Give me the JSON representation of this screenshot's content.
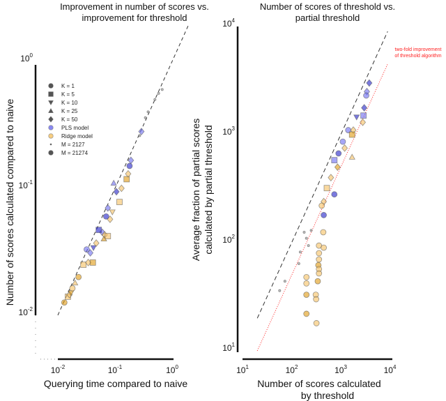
{
  "chart_data": [
    {
      "type": "scatter",
      "title_lines": [
        "Improvement in number of scores vs.",
        "improvement for threshold"
      ],
      "xlabel_lines": [
        "Querying time compared to naive"
      ],
      "ylabel_lines": [
        "Number of scores calculated compared to naive"
      ],
      "xscale": "log",
      "yscale": "log",
      "xlim": [
        0.01,
        1
      ],
      "ylim": [
        0.01,
        1
      ],
      "grid": false,
      "xticks": [
        {
          "base": "10",
          "exp": "-2",
          "value": 0.01
        },
        {
          "base": "10",
          "exp": "-1",
          "value": 0.1
        },
        {
          "base": "10",
          "exp": "0",
          "value": 1
        }
      ],
      "yticks": [
        {
          "base": "10",
          "exp": "-2",
          "value": 0.01
        },
        {
          "base": "10",
          "exp": "-1",
          "value": 0.1
        },
        {
          "base": "10",
          "exp": "0",
          "value": 1
        }
      ],
      "reference_lines": [
        {
          "style": "dashed",
          "color": "#333333",
          "equation": "y = x"
        }
      ],
      "legend": {
        "placement": "upper-left",
        "entries": [
          {
            "label": "K = 1",
            "marker": "circle",
            "color": "#555555"
          },
          {
            "label": "K = 5",
            "marker": "square",
            "color": "#555555"
          },
          {
            "label": "K = 10",
            "marker": "triangle-down",
            "color": "#555555"
          },
          {
            "label": "K = 25",
            "marker": "triangle-up",
            "color": "#555555"
          },
          {
            "label": "K = 50",
            "marker": "diamond",
            "color": "#555555"
          },
          {
            "label": "PLS model",
            "marker": "circle",
            "color": "#6b6bf0"
          },
          {
            "label": "Ridge model",
            "marker": "circle",
            "color": "#f5c060"
          },
          {
            "label": "M = 2127",
            "marker": "small-dot",
            "color": "#555555"
          },
          {
            "label": "M = 21274",
            "marker": "circle",
            "color": "#555555"
          }
        ]
      },
      "points": [
        {
          "x": 0.013,
          "y": 0.0126,
          "model": "Ridge",
          "k": 1,
          "m": 21274
        },
        {
          "x": 0.015,
          "y": 0.014,
          "model": "Ridge",
          "k": 5,
          "m": 21274
        },
        {
          "x": 0.016,
          "y": 0.0145,
          "model": "Ridge",
          "k": 50,
          "m": 21274
        },
        {
          "x": 0.017,
          "y": 0.015,
          "model": "Ridge",
          "k": 10,
          "m": 21274
        },
        {
          "x": 0.018,
          "y": 0.0163,
          "model": "Ridge",
          "k": 1,
          "m": 21274
        },
        {
          "x": 0.02,
          "y": 0.018,
          "model": "Ridge",
          "k": 25,
          "m": 21274
        },
        {
          "x": 0.023,
          "y": 0.02,
          "model": "Ridge",
          "k": 1,
          "m": 21274
        },
        {
          "x": 0.028,
          "y": 0.025,
          "model": "Ridge",
          "k": 5,
          "m": 21274
        },
        {
          "x": 0.034,
          "y": 0.026,
          "model": "Ridge",
          "k": 50,
          "m": 21274
        },
        {
          "x": 0.041,
          "y": 0.026,
          "model": "Ridge",
          "k": 5,
          "m": 21274
        },
        {
          "x": 0.032,
          "y": 0.033,
          "model": "PLS",
          "k": 1,
          "m": 21274
        },
        {
          "x": 0.037,
          "y": 0.031,
          "model": "PLS",
          "k": 50,
          "m": 21274
        },
        {
          "x": 0.042,
          "y": 0.034,
          "model": "PLS",
          "k": 10,
          "m": 21274
        },
        {
          "x": 0.047,
          "y": 0.037,
          "model": "Ridge",
          "k": 50,
          "m": 21274
        },
        {
          "x": 0.06,
          "y": 0.045,
          "model": "PLS",
          "k": 50,
          "m": 21274
        },
        {
          "x": 0.052,
          "y": 0.047,
          "model": "PLS",
          "k": 5,
          "m": 21274
        },
        {
          "x": 0.066,
          "y": 0.043,
          "model": "Ridge",
          "k": 50,
          "m": 21274
        },
        {
          "x": 0.075,
          "y": 0.042,
          "model": "Ridge",
          "k": 5,
          "m": 21274
        },
        {
          "x": 0.064,
          "y": 0.04,
          "model": "Ridge",
          "k": 25,
          "m": 21274
        },
        {
          "x": 0.082,
          "y": 0.057,
          "model": "Ridge",
          "k": 50,
          "m": 21274
        },
        {
          "x": 0.075,
          "y": 0.07,
          "model": "PLS",
          "k": 50,
          "m": 21274
        },
        {
          "x": 0.07,
          "y": 0.06,
          "model": "PLS",
          "k": 1,
          "m": 21274
        },
        {
          "x": 0.09,
          "y": 0.065,
          "model": "Ridge",
          "k": 10,
          "m": 21274
        },
        {
          "x": 0.12,
          "y": 0.078,
          "model": "Ridge",
          "k": 5,
          "m": 21274
        },
        {
          "x": 0.106,
          "y": 0.094,
          "model": "PLS",
          "k": 50,
          "m": 21274
        },
        {
          "x": 0.13,
          "y": 0.1,
          "model": "Ridge",
          "k": 50,
          "m": 21274
        },
        {
          "x": 0.095,
          "y": 0.11,
          "model": "PLS",
          "k": 25,
          "m": 21274
        },
        {
          "x": 0.16,
          "y": 0.118,
          "model": "Ridge",
          "k": 5,
          "m": 21274
        },
        {
          "x": 0.17,
          "y": 0.13,
          "model": "Ridge",
          "k": 50,
          "m": 21274
        },
        {
          "x": 0.19,
          "y": 0.166,
          "model": "PLS",
          "k": 50,
          "m": 21274
        },
        {
          "x": 0.18,
          "y": 0.15,
          "model": "PLS",
          "k": 1,
          "m": 21274
        },
        {
          "x": 0.29,
          "y": 0.28,
          "model": "PLS",
          "k": 50,
          "m": 21274
        },
        {
          "x": 0.27,
          "y": 0.26,
          "model": "PLS",
          "k": 1,
          "m": 2127
        },
        {
          "x": 0.38,
          "y": 0.4,
          "model": "PLS",
          "k": 50,
          "m": 2127
        },
        {
          "x": 0.34,
          "y": 0.36,
          "model": "PLS",
          "k": 1,
          "m": 2127
        },
        {
          "x": 0.58,
          "y": 0.56,
          "model": "PLS",
          "k": 1,
          "m": 2127
        },
        {
          "x": 0.67,
          "y": 0.6,
          "model": "PLS",
          "k": 1,
          "m": 2127
        },
        {
          "x": 0.5,
          "y": 0.5,
          "model": "Ridge",
          "k": 1,
          "m": 2127
        }
      ]
    },
    {
      "type": "scatter",
      "title_lines": [
        "Number of scores of threshold vs.",
        "partial threshold"
      ],
      "xlabel_lines": [
        "Number of scores calculated",
        "by threshold"
      ],
      "ylabel_lines": [
        "Average fraction of partial scores",
        "calculated by partial threshold"
      ],
      "xscale": "log",
      "yscale": "log",
      "xlim": [
        10,
        10000
      ],
      "ylim": [
        10,
        10000
      ],
      "grid": false,
      "xticks": [
        {
          "base": "10",
          "exp": "1",
          "value": 10
        },
        {
          "base": "10",
          "exp": "2",
          "value": 100
        },
        {
          "base": "10",
          "exp": "3",
          "value": 1000
        },
        {
          "base": "10",
          "exp": "4",
          "value": 10000
        }
      ],
      "yticks": [
        {
          "base": "10",
          "exp": "1",
          "value": 10
        },
        {
          "base": "10",
          "exp": "2",
          "value": 100
        },
        {
          "base": "10",
          "exp": "3",
          "value": 1000
        },
        {
          "base": "10",
          "exp": "4",
          "value": 10000
        }
      ],
      "reference_lines": [
        {
          "style": "dashed",
          "color": "#333333",
          "equation": "y = x"
        },
        {
          "style": "dotted",
          "color": "#ff2020",
          "equation": "y = x / 2",
          "label_lines": [
            "two-fold improvement",
            "of threshold algorithm"
          ]
        }
      ],
      "points": [
        {
          "x": 3800,
          "y": 3000,
          "model": "PLS",
          "k": 50,
          "m": 21274
        },
        {
          "x": 3400,
          "y": 2500,
          "model": "PLS",
          "k": 50,
          "m": 21274
        },
        {
          "x": 3300,
          "y": 2300,
          "model": "PLS",
          "k": 1,
          "m": 21274
        },
        {
          "x": 3000,
          "y": 1770,
          "model": "PLS",
          "k": 50,
          "m": 21274
        },
        {
          "x": 2900,
          "y": 1500,
          "model": "PLS",
          "k": 5,
          "m": 21274
        },
        {
          "x": 2800,
          "y": 1300,
          "model": "Ridge",
          "k": 50,
          "m": 21274
        },
        {
          "x": 2100,
          "y": 1450,
          "model": "PLS",
          "k": 10,
          "m": 21274
        },
        {
          "x": 1420,
          "y": 1100,
          "model": "PLS",
          "k": 1,
          "m": 21274
        },
        {
          "x": 1800,
          "y": 1100,
          "model": "Ridge",
          "k": 50,
          "m": 21274
        },
        {
          "x": 1700,
          "y": 1000,
          "model": "Ridge",
          "k": 5,
          "m": 21274
        },
        {
          "x": 1100,
          "y": 860,
          "model": "PLS",
          "k": 1,
          "m": 21274
        },
        {
          "x": 1200,
          "y": 750,
          "model": "Ridge",
          "k": 50,
          "m": 21274
        },
        {
          "x": 900,
          "y": 670,
          "model": "PLS",
          "k": 1,
          "m": 21274
        },
        {
          "x": 1700,
          "y": 620,
          "model": "Ridge",
          "k": 25,
          "m": 21274
        },
        {
          "x": 740,
          "y": 580,
          "model": "PLS",
          "k": 5,
          "m": 21274
        },
        {
          "x": 860,
          "y": 500,
          "model": "Ridge",
          "k": 50,
          "m": 21274
        },
        {
          "x": 630,
          "y": 400,
          "model": "Ridge",
          "k": 50,
          "m": 21274
        },
        {
          "x": 520,
          "y": 320,
          "model": "Ridge",
          "k": 5,
          "m": 21274
        },
        {
          "x": 740,
          "y": 280,
          "model": "PLS",
          "k": 1,
          "m": 21274
        },
        {
          "x": 450,
          "y": 240,
          "model": "Ridge",
          "k": 50,
          "m": 21274
        },
        {
          "x": 410,
          "y": 220,
          "model": "Ridge",
          "k": 1,
          "m": 21274
        },
        {
          "x": 450,
          "y": 180,
          "model": "PLS",
          "k": 1,
          "m": 21274
        },
        {
          "x": 250,
          "y": 130,
          "model": "PLS",
          "k": 1,
          "m": 2127
        },
        {
          "x": 440,
          "y": 125,
          "model": "Ridge",
          "k": 1,
          "m": 21274
        },
        {
          "x": 200,
          "y": 110,
          "model": "PLS",
          "k": 1,
          "m": 2127
        },
        {
          "x": 360,
          "y": 94,
          "model": "Ridge",
          "k": 1,
          "m": 21274
        },
        {
          "x": 450,
          "y": 90,
          "model": "Ridge",
          "k": 1,
          "m": 21274
        },
        {
          "x": 220,
          "y": 94,
          "model": "Ridge",
          "k": 1,
          "m": 2127
        },
        {
          "x": 360,
          "y": 80,
          "model": "Ridge",
          "k": 1,
          "m": 21274
        },
        {
          "x": 360,
          "y": 70,
          "model": "Ridge",
          "k": 1,
          "m": 21274
        },
        {
          "x": 350,
          "y": 62,
          "model": "Ridge",
          "k": 1,
          "m": 21274
        },
        {
          "x": 360,
          "y": 57,
          "model": "Ridge",
          "k": 1,
          "m": 21274
        },
        {
          "x": 360,
          "y": 52,
          "model": "Ridge",
          "k": 1,
          "m": 21274
        },
        {
          "x": 340,
          "y": 44,
          "model": "Ridge",
          "k": 1,
          "m": 21274
        },
        {
          "x": 200,
          "y": 48,
          "model": "Ridge",
          "k": 1,
          "m": 21274
        },
        {
          "x": 200,
          "y": 42,
          "model": "Ridge",
          "k": 1,
          "m": 21274
        },
        {
          "x": 200,
          "y": 33,
          "model": "Ridge",
          "k": 1,
          "m": 21274
        },
        {
          "x": 310,
          "y": 33,
          "model": "Ridge",
          "k": 1,
          "m": 21274
        },
        {
          "x": 315,
          "y": 30,
          "model": "Ridge",
          "k": 1,
          "m": 21274
        },
        {
          "x": 200,
          "y": 22,
          "model": "Ridge",
          "k": 1,
          "m": 21274
        },
        {
          "x": 320,
          "y": 18,
          "model": "Ridge",
          "k": 1,
          "m": 21274
        },
        {
          "x": 73,
          "y": 44,
          "model": "PLS",
          "k": 1,
          "m": 2127
        },
        {
          "x": 57,
          "y": 36,
          "model": "PLS",
          "k": 1,
          "m": 2127
        },
        {
          "x": 150,
          "y": 82,
          "model": "PLS",
          "k": 1,
          "m": 2127
        },
        {
          "x": 140,
          "y": 64,
          "model": "PLS",
          "k": 1,
          "m": 2127
        },
        {
          "x": 180,
          "y": 125,
          "model": "PLS",
          "k": 1,
          "m": 2127
        }
      ]
    }
  ]
}
